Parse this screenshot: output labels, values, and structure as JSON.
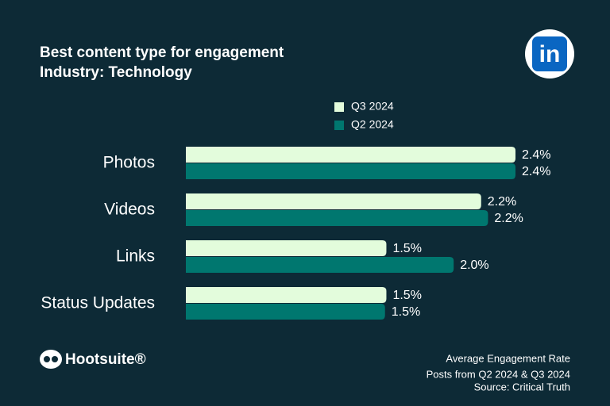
{
  "chart_data": {
    "type": "hbar",
    "title": "Best content type for engagement",
    "subtitle": "Industry: Technology",
    "categories": [
      "Photos",
      "Videos",
      "Links",
      "Status Updates"
    ],
    "series": [
      {
        "name": "Q3 2024",
        "color": "#e3fcdc",
        "values": [
          2.4,
          2.15,
          1.46,
          1.46
        ],
        "value_labels": [
          "2.4%",
          "2.2%",
          "1.5%",
          "1.5%"
        ]
      },
      {
        "name": "Q2 2024",
        "color": "#00776f",
        "values": [
          2.4,
          2.2,
          1.95,
          1.45
        ],
        "value_labels": [
          "2.4%",
          "2.2%",
          "2.0%",
          "1.5%"
        ]
      }
    ],
    "xlabel": "Average Engagement Rate",
    "note": "Posts from Q2 2024 & Q3 2024",
    "source": "Source: Critical Truth",
    "brand": "Hootsuite®",
    "logo": "in"
  }
}
